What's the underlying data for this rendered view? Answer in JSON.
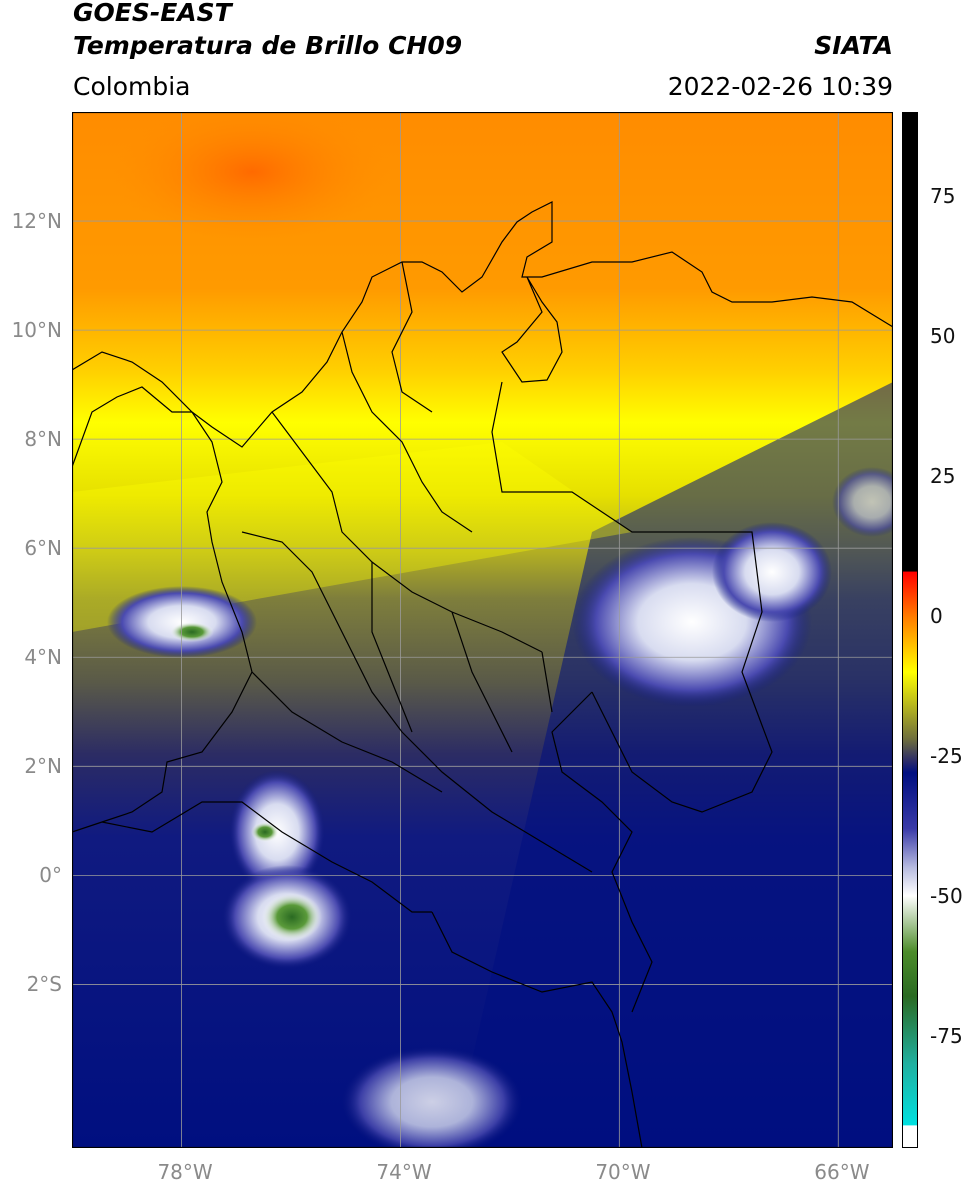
{
  "header": {
    "satellite": "GOES-EAST",
    "product": "Temperatura de Brillo CH09",
    "region": "Colombia",
    "source": "SIATA",
    "datetime": "2022-02-26 10:39"
  },
  "map": {
    "lon_range": [
      -80,
      -65
    ],
    "lat_range": [
      -5,
      14
    ],
    "lat_ticks": [
      {
        "value": 12,
        "label": "12°N"
      },
      {
        "value": 10,
        "label": "10°N"
      },
      {
        "value": 8,
        "label": "8°N"
      },
      {
        "value": 6,
        "label": "6°N"
      },
      {
        "value": 4,
        "label": "4°N"
      },
      {
        "value": 2,
        "label": "2°N"
      },
      {
        "value": 0,
        "label": "0°"
      },
      {
        "value": -2,
        "label": "2°S"
      }
    ],
    "lon_ticks": [
      {
        "value": -78,
        "label": "78°W"
      },
      {
        "value": -74,
        "label": "74°W"
      },
      {
        "value": -70,
        "label": "70°W"
      },
      {
        "value": -66,
        "label": "66°W"
      }
    ],
    "grid": true,
    "gridline_color": "#9a9a9a",
    "boundary_color": "#000000"
  },
  "colorbar": {
    "range": [
      -95,
      90
    ],
    "ticks": [
      {
        "value": 75,
        "label": "75"
      },
      {
        "value": 50,
        "label": "50"
      },
      {
        "value": 25,
        "label": "25"
      },
      {
        "value": 0,
        "label": "0"
      },
      {
        "value": -25,
        "label": "-25"
      },
      {
        "value": -50,
        "label": "-50"
      },
      {
        "value": -75,
        "label": "-75"
      }
    ],
    "stops": [
      {
        "value": 90,
        "color": "#000000"
      },
      {
        "value": 8,
        "color": "#000000"
      },
      {
        "value": 7.9,
        "color": "#ff0000"
      },
      {
        "value": 0,
        "color": "#ff7a00"
      },
      {
        "value": -10,
        "color": "#ffff00"
      },
      {
        "value": -22,
        "color": "#6e6e3c"
      },
      {
        "value": -26,
        "color": "#2a2a6a"
      },
      {
        "value": -28,
        "color": "#000f80"
      },
      {
        "value": -38,
        "color": "#3a3aa8"
      },
      {
        "value": -45,
        "color": "#b8bce0"
      },
      {
        "value": -50,
        "color": "#ffffff"
      },
      {
        "value": -60,
        "color": "#4c8c2a"
      },
      {
        "value": -68,
        "color": "#2a6a22"
      },
      {
        "value": -80,
        "color": "#20b0a0"
      },
      {
        "value": -91,
        "color": "#00e0e0"
      },
      {
        "value": -91.1,
        "color": "#ffffff"
      },
      {
        "value": -95,
        "color": "#ffffff"
      }
    ]
  }
}
